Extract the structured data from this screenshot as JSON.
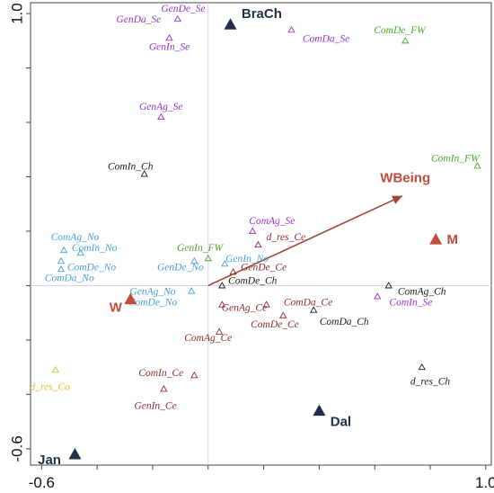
{
  "chart_data": {
    "type": "scatter",
    "title": "",
    "xlabel": "",
    "ylabel": "",
    "xlim": [
      -0.64,
      1.02
    ],
    "ylim": [
      -0.66,
      1.04
    ],
    "x_ticks": [
      -0.6,
      1.0
    ],
    "x_tick_labels": [
      "-0.6",
      "1.0"
    ],
    "y_ticks": [
      1.0,
      -0.6
    ],
    "y_tick_labels": [
      "1.0",
      "-0.6"
    ],
    "grid": false,
    "reference_lines": {
      "x": 0,
      "y": 0
    },
    "colors": {
      "se": "#9b30c8",
      "fw": "#4ca62c",
      "no": "#4a9fd6",
      "ce": "#8b2b2b",
      "ch": "#1a1a1a",
      "co": "#d8c42a",
      "site": "#223047",
      "env": "#c04a3c",
      "arrow": "#a0453a"
    },
    "groups": [
      {
        "key": "se",
        "points": [
          {
            "label": "GenDa_Se",
            "x": null,
            "y": null,
            "lx": -0.17,
            "ly": 0.98,
            "anchor": "end"
          },
          {
            "label": "GenDe_Se",
            "x": -0.11,
            "y": 0.98,
            "lx": -0.09,
            "ly": 1.02,
            "anchor": "middle"
          },
          {
            "label": "GenIn_Se",
            "x": -0.14,
            "y": 0.91,
            "lx": -0.14,
            "ly": 0.88,
            "anchor": "middle"
          },
          {
            "label": "ComDa_Se",
            "x": 0.3,
            "y": 0.94,
            "lx": 0.34,
            "ly": 0.91,
            "anchor": "start"
          },
          {
            "label": "GenAg_Se",
            "x": -0.17,
            "y": 0.62,
            "lx": -0.17,
            "ly": 0.66,
            "anchor": "middle"
          },
          {
            "label": "ComAg_Se",
            "x": 0.16,
            "y": 0.2,
            "lx": 0.23,
            "ly": 0.24,
            "anchor": "middle"
          },
          {
            "label": "ComIn_Se",
            "x": 0.61,
            "y": -0.04,
            "lx": 0.73,
            "ly": -0.06,
            "anchor": "middle"
          }
        ]
      },
      {
        "key": "fw",
        "points": [
          {
            "label": "ComDe_FW",
            "x": 0.71,
            "y": 0.9,
            "lx": 0.69,
            "ly": 0.94,
            "anchor": "middle"
          },
          {
            "label": "ComIn_FW",
            "x": 0.97,
            "y": 0.44,
            "lx": 0.89,
            "ly": 0.47,
            "anchor": "middle"
          },
          {
            "label": "GenIn_FW",
            "x": 0.0,
            "y": 0.1,
            "lx": -0.03,
            "ly": 0.14,
            "anchor": "middle"
          }
        ]
      },
      {
        "key": "no",
        "points": [
          {
            "label": "ComAg_No",
            "x": -0.52,
            "y": 0.13,
            "lx": -0.48,
            "ly": 0.18,
            "anchor": "middle"
          },
          {
            "label": "ComIn_No",
            "x": -0.46,
            "y": 0.12,
            "lx": -0.41,
            "ly": 0.14,
            "anchor": "middle"
          },
          {
            "label": "ComDe_No",
            "x": -0.53,
            "y": 0.09,
            "lx": -0.42,
            "ly": 0.07,
            "anchor": "middle"
          },
          {
            "label": "ComDa_No",
            "x": -0.53,
            "y": 0.06,
            "lx": -0.5,
            "ly": 0.03,
            "anchor": "middle"
          },
          {
            "label": "GenDe_No",
            "x": -0.05,
            "y": 0.09,
            "lx": -0.1,
            "ly": 0.07,
            "anchor": "middle"
          },
          {
            "label": "GenIn_No",
            "x": 0.06,
            "y": 0.08,
            "lx": 0.14,
            "ly": 0.1,
            "anchor": "middle"
          },
          {
            "label": "GenAg_No",
            "x": -0.06,
            "y": -0.02,
            "lx": -0.2,
            "ly": -0.02,
            "anchor": "middle"
          },
          {
            "label": "ComDe_No",
            "x": null,
            "y": null,
            "lx": -0.2,
            "ly": -0.06,
            "anchor": "middle"
          }
        ]
      },
      {
        "key": "ce",
        "points": [
          {
            "label": "d_res_Ce",
            "x": 0.18,
            "y": 0.15,
            "lx": 0.28,
            "ly": 0.18,
            "anchor": "middle"
          },
          {
            "label": "GenDe_Ce",
            "x": 0.09,
            "y": 0.05,
            "lx": 0.2,
            "ly": 0.07,
            "anchor": "middle"
          },
          {
            "label": "GenAg_Ce",
            "x": 0.05,
            "y": -0.07,
            "lx": 0.13,
            "ly": -0.08,
            "anchor": "middle"
          },
          {
            "label": "ComDa_Ce",
            "x": 0.21,
            "y": -0.07,
            "lx": 0.36,
            "ly": -0.06,
            "anchor": "middle"
          },
          {
            "label": "ComDe_Ce",
            "x": 0.27,
            "y": -0.11,
            "lx": 0.24,
            "ly": -0.14,
            "anchor": "middle"
          },
          {
            "label": "ComAg_Ce",
            "x": 0.04,
            "y": -0.17,
            "lx": 0.0,
            "ly": -0.19,
            "anchor": "middle"
          },
          {
            "label": "ComIn_Ce",
            "x": -0.05,
            "y": -0.33,
            "lx": -0.17,
            "ly": -0.32,
            "anchor": "middle"
          },
          {
            "label": "GenIn_Ce",
            "x": -0.16,
            "y": -0.38,
            "lx": -0.19,
            "ly": -0.44,
            "anchor": "middle"
          }
        ]
      },
      {
        "key": "ch",
        "points": [
          {
            "label": "ComIn_Ch",
            "x": -0.23,
            "y": 0.41,
            "lx": -0.28,
            "ly": 0.44,
            "anchor": "middle"
          },
          {
            "label": "ComDe_Ch",
            "x": 0.05,
            "y": 0.0,
            "lx": 0.16,
            "ly": 0.02,
            "anchor": "middle"
          },
          {
            "label": "ComAg_Ch",
            "x": 0.65,
            "y": 0.0,
            "lx": 0.77,
            "ly": -0.02,
            "anchor": "middle"
          },
          {
            "label": "ComDa_Ch",
            "x": 0.38,
            "y": -0.09,
            "lx": 0.49,
            "ly": -0.13,
            "anchor": "middle"
          },
          {
            "label": "d_res_Ch",
            "x": 0.77,
            "y": -0.3,
            "lx": 0.8,
            "ly": -0.35,
            "anchor": "middle"
          }
        ]
      },
      {
        "key": "co",
        "points": [
          {
            "label": "d_res_Co",
            "x": -0.55,
            "y": -0.31,
            "lx": -0.57,
            "ly": -0.37,
            "anchor": "middle"
          }
        ]
      }
    ],
    "sites": [
      {
        "label": "BraCh",
        "x": 0.08,
        "y": 0.96,
        "lx": 0.12,
        "ly": 1.0,
        "anchor": "start"
      },
      {
        "label": "Dal",
        "x": 0.4,
        "y": -0.46,
        "lx": 0.44,
        "ly": -0.5,
        "anchor": "start"
      },
      {
        "label": "Jan",
        "x": -0.48,
        "y": -0.62,
        "lx": -0.53,
        "ly": -0.64,
        "anchor": "end"
      }
    ],
    "env_vars": [
      {
        "label": "M",
        "x": 0.82,
        "y": 0.17,
        "lx": 0.86,
        "ly": 0.17,
        "anchor": "start"
      },
      {
        "label": "W",
        "x": -0.28,
        "y": -0.05,
        "lx": -0.31,
        "ly": -0.08,
        "anchor": "end"
      }
    ],
    "arrow": {
      "label": "WBeing",
      "x1": 0.0,
      "y1": 0.0,
      "x2": 0.7,
      "y2": 0.33,
      "lx": 0.71,
      "ly": 0.38
    }
  }
}
